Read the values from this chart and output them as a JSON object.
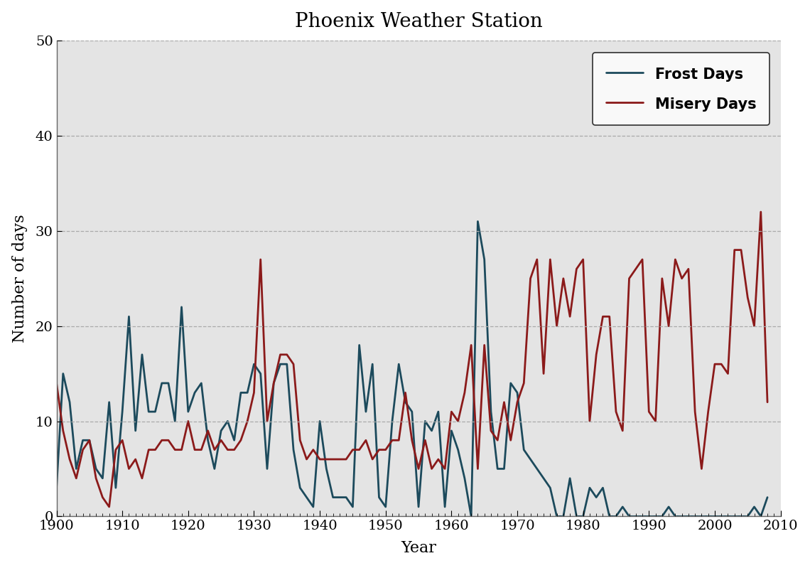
{
  "title": "Phoenix Weather Station",
  "xlabel": "Year",
  "ylabel": "Number of days",
  "xlim": [
    1900,
    2010
  ],
  "ylim": [
    0,
    50
  ],
  "yticks": [
    0,
    10,
    20,
    30,
    40,
    50
  ],
  "xticks": [
    1900,
    1910,
    1920,
    1930,
    1940,
    1950,
    1960,
    1970,
    1980,
    1990,
    2000,
    2010
  ],
  "axes_bg_color": "#e4e4e4",
  "fig_bg_color": "#ffffff",
  "frost_color": "#1c4a5c",
  "misery_color": "#8b1a1a",
  "legend_labels": [
    "Frost Days",
    "Misery Days"
  ],
  "frost_years": [
    1900,
    1901,
    1902,
    1903,
    1904,
    1905,
    1906,
    1907,
    1908,
    1909,
    1910,
    1911,
    1912,
    1913,
    1914,
    1915,
    1916,
    1917,
    1918,
    1919,
    1920,
    1921,
    1922,
    1923,
    1924,
    1925,
    1926,
    1927,
    1928,
    1929,
    1930,
    1931,
    1932,
    1933,
    1934,
    1935,
    1936,
    1937,
    1938,
    1939,
    1940,
    1941,
    1942,
    1943,
    1944,
    1945,
    1946,
    1947,
    1948,
    1949,
    1950,
    1951,
    1952,
    1953,
    1954,
    1955,
    1956,
    1957,
    1958,
    1959,
    1960,
    1961,
    1962,
    1963,
    1964,
    1965,
    1966,
    1967,
    1968,
    1969,
    1970,
    1971,
    1972,
    1973,
    1974,
    1975,
    1976,
    1977,
    1978,
    1979,
    1980,
    1981,
    1982,
    1983,
    1984,
    1985,
    1986,
    1987,
    1988,
    1989,
    1990,
    1991,
    1992,
    1993,
    1994,
    1995,
    1996,
    1997,
    1998,
    1999,
    2000,
    2001,
    2002,
    2003,
    2004,
    2005,
    2006,
    2007,
    2008
  ],
  "frost_values": [
    3,
    15,
    12,
    5,
    8,
    8,
    5,
    4,
    12,
    3,
    11,
    21,
    9,
    17,
    11,
    11,
    14,
    14,
    10,
    22,
    11,
    13,
    14,
    8,
    5,
    9,
    10,
    8,
    13,
    13,
    16,
    15,
    5,
    14,
    16,
    16,
    7,
    3,
    2,
    1,
    10,
    5,
    2,
    2,
    2,
    1,
    18,
    11,
    16,
    2,
    1,
    10,
    16,
    12,
    11,
    1,
    10,
    9,
    11,
    1,
    9,
    7,
    4,
    0,
    31,
    27,
    11,
    5,
    5,
    14,
    13,
    7,
    6,
    5,
    4,
    3,
    0,
    0,
    4,
    0,
    0,
    3,
    2,
    3,
    0,
    0,
    1,
    0,
    0,
    0,
    0,
    0,
    0,
    1,
    0,
    0,
    0,
    0,
    0,
    0,
    0,
    0,
    0,
    0,
    0,
    0,
    1,
    0,
    2
  ],
  "misery_years": [
    1900,
    1901,
    1902,
    1903,
    1904,
    1905,
    1906,
    1907,
    1908,
    1909,
    1910,
    1911,
    1912,
    1913,
    1914,
    1915,
    1916,
    1917,
    1918,
    1919,
    1920,
    1921,
    1922,
    1923,
    1924,
    1925,
    1926,
    1927,
    1928,
    1929,
    1930,
    1931,
    1932,
    1933,
    1934,
    1935,
    1936,
    1937,
    1938,
    1939,
    1940,
    1941,
    1942,
    1943,
    1944,
    1945,
    1946,
    1947,
    1948,
    1949,
    1950,
    1951,
    1952,
    1953,
    1954,
    1955,
    1956,
    1957,
    1958,
    1959,
    1960,
    1961,
    1962,
    1963,
    1964,
    1965,
    1966,
    1967,
    1968,
    1969,
    1970,
    1971,
    1972,
    1973,
    1974,
    1975,
    1976,
    1977,
    1978,
    1979,
    1980,
    1981,
    1982,
    1983,
    1984,
    1985,
    1986,
    1987,
    1988,
    1989,
    1990,
    1991,
    1992,
    1993,
    1994,
    1995,
    1996,
    1997,
    1998,
    1999,
    2000,
    2001,
    2002,
    2003,
    2004,
    2005,
    2006,
    2007,
    2008
  ],
  "misery_values": [
    14,
    9,
    6,
    4,
    7,
    8,
    4,
    2,
    1,
    7,
    8,
    5,
    6,
    4,
    7,
    7,
    8,
    8,
    7,
    7,
    10,
    7,
    7,
    9,
    7,
    8,
    7,
    7,
    8,
    10,
    13,
    27,
    10,
    14,
    17,
    17,
    16,
    8,
    6,
    7,
    6,
    6,
    6,
    6,
    6,
    7,
    7,
    8,
    6,
    7,
    7,
    8,
    8,
    13,
    8,
    5,
    8,
    5,
    6,
    5,
    11,
    10,
    13,
    18,
    5,
    18,
    9,
    8,
    12,
    8,
    12,
    14,
    25,
    27,
    15,
    27,
    20,
    25,
    21,
    26,
    27,
    10,
    17,
    21,
    21,
    11,
    9,
    25,
    26,
    27,
    11,
    10,
    25,
    20,
    27,
    25,
    26,
    11,
    5,
    11,
    16,
    16,
    15,
    28,
    28,
    23,
    20,
    32,
    12
  ]
}
